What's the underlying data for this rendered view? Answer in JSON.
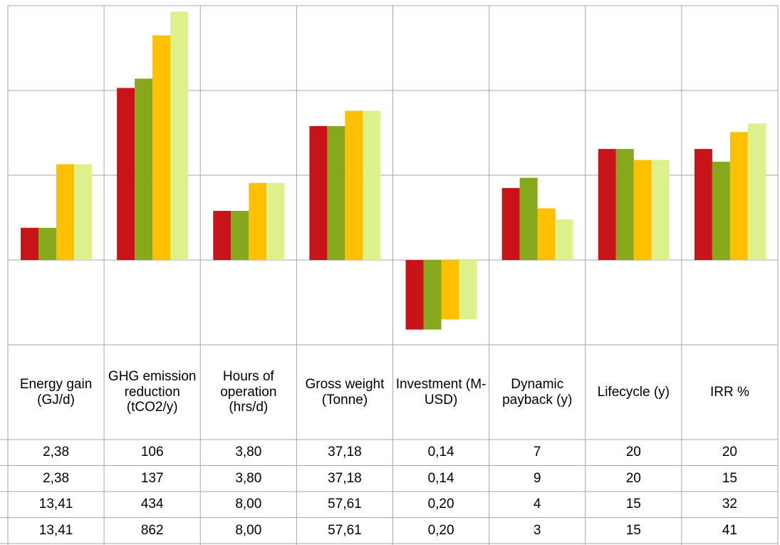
{
  "chart_data": {
    "type": "bar",
    "categories": [
      "Energy gain (GJ/d)",
      "GHG emission reduction (tCO2/y)",
      "Hours of operation (hrs/d)",
      "Gross weight (Tonne)",
      "Investment (M-USD)",
      "Dynamic payback (y)",
      "Lifecycle (y)",
      "IRR %"
    ],
    "series": [
      {
        "color": "#c81418",
        "values": [
          0.38,
          2.03,
          0.58,
          1.58,
          -0.82,
          0.85,
          1.31,
          1.31
        ]
      },
      {
        "color": "#86a81c",
        "values": [
          0.38,
          2.14,
          0.58,
          1.58,
          -0.82,
          0.97,
          1.31,
          1.16
        ]
      },
      {
        "color": "#ffc000",
        "values": [
          1.13,
          2.65,
          0.91,
          1.76,
          -0.7,
          0.61,
          1.18,
          1.51
        ]
      },
      {
        "color": "#dcf08c",
        "values": [
          1.13,
          2.93,
          0.91,
          1.76,
          -0.7,
          0.48,
          1.18,
          1.61
        ]
      }
    ],
    "ylim": [
      -1,
      3
    ],
    "yticks": [
      -1,
      0,
      1,
      2,
      3
    ],
    "grid": true
  },
  "table": {
    "rows": [
      [
        "2,38",
        "106",
        "3,80",
        "37,18",
        "0,14",
        "7",
        "20",
        "20"
      ],
      [
        "2,38",
        "137",
        "3,80",
        "37,18",
        "0,14",
        "9",
        "20",
        "15"
      ],
      [
        "13,41",
        "434",
        "8,00",
        "57,61",
        "0,20",
        "4",
        "15",
        "32"
      ],
      [
        "13,41",
        "862",
        "8,00",
        "57,61",
        "0,20",
        "3",
        "15",
        "41"
      ]
    ]
  }
}
